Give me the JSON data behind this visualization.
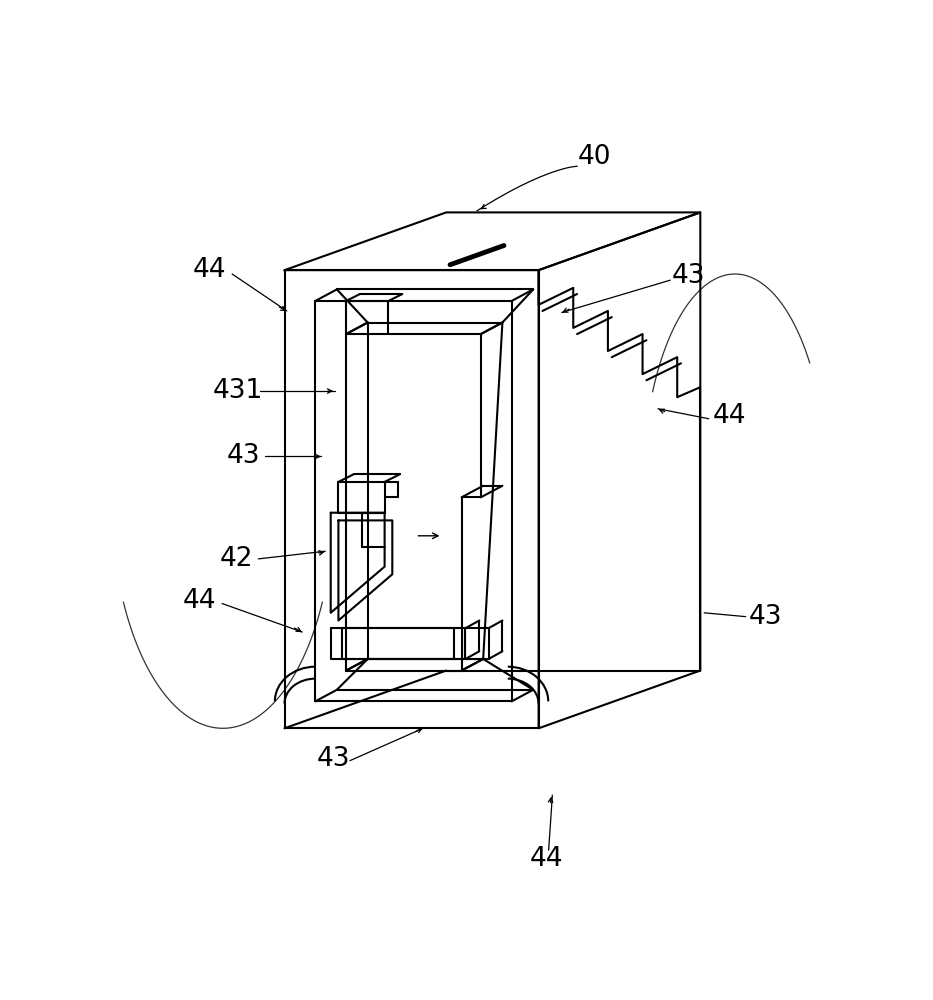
{
  "bg_color": "#ffffff",
  "lw": 1.5,
  "lw_thick": 3.5,
  "lw_thin": 1.0,
  "fig_w": 9.33,
  "fig_h": 10.0,
  "dpi": 100
}
